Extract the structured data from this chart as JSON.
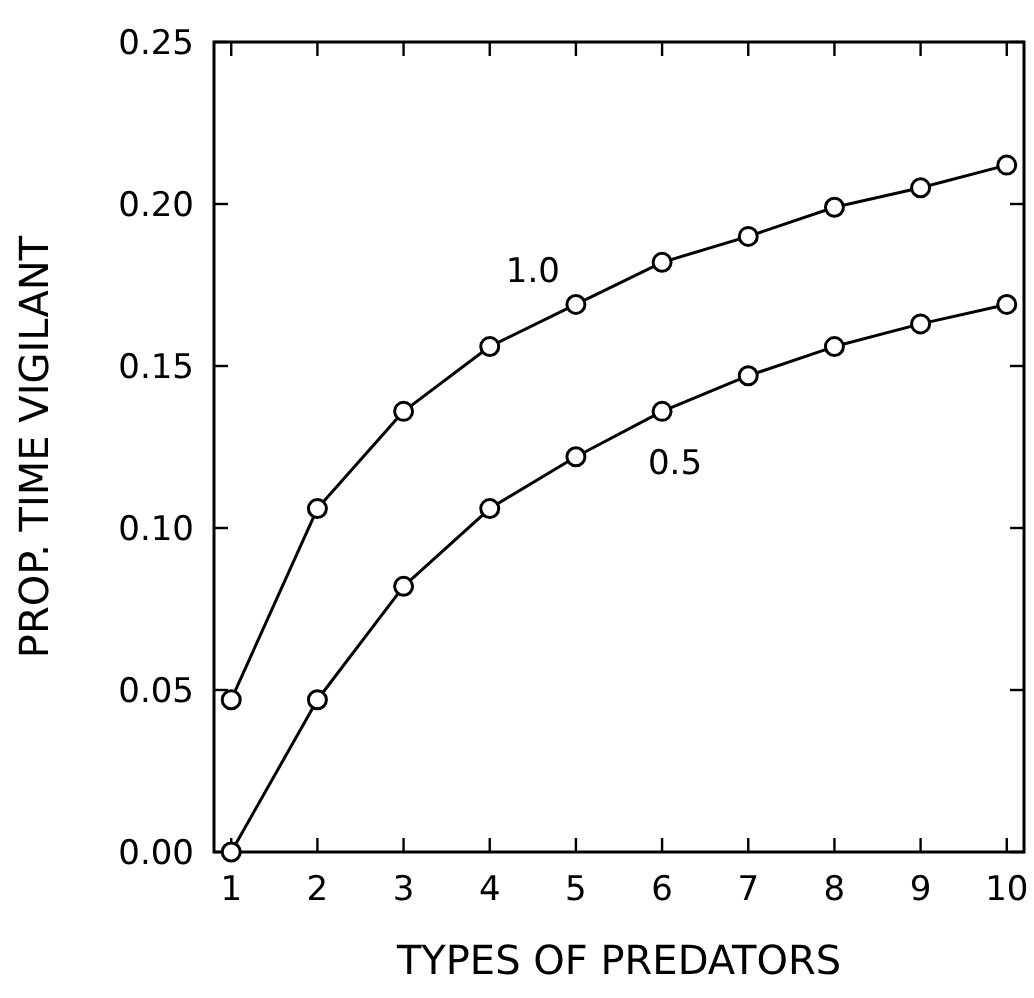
{
  "chart_data": {
    "type": "line",
    "xlabel": "TYPES OF PREDATORS",
    "ylabel": "PROP. TIME VIGILANT",
    "x": [
      1,
      2,
      3,
      4,
      5,
      6,
      7,
      8,
      9,
      10
    ],
    "series": [
      {
        "name": "1.0",
        "color": "#000000",
        "values": [
          0.047,
          0.106,
          0.136,
          0.156,
          0.169,
          0.182,
          0.19,
          0.199,
          0.205,
          0.212
        ]
      },
      {
        "name": "0.5",
        "color": "#000000",
        "values": [
          0,
          0.047,
          0.082,
          0.106,
          0.122,
          0.136,
          0.147,
          0.156,
          0.163,
          0.169
        ]
      }
    ],
    "xlim": [
      0.8,
      10.2
    ],
    "xticks": [
      1,
      2,
      3,
      4,
      5,
      6,
      7,
      8,
      9,
      10
    ],
    "ylim": [
      0,
      0.25
    ],
    "yticks": [
      {
        "value": 0,
        "label": "0.00"
      },
      {
        "value": 0.05,
        "label": "0.05"
      },
      {
        "value": 0.1,
        "label": "0.10"
      },
      {
        "value": 0.15,
        "label": "0.15"
      },
      {
        "value": 0.2,
        "label": "0.20"
      },
      {
        "value": 0.25,
        "label": "0.25"
      }
    ],
    "marker": "circle",
    "line_style": "solid"
  }
}
